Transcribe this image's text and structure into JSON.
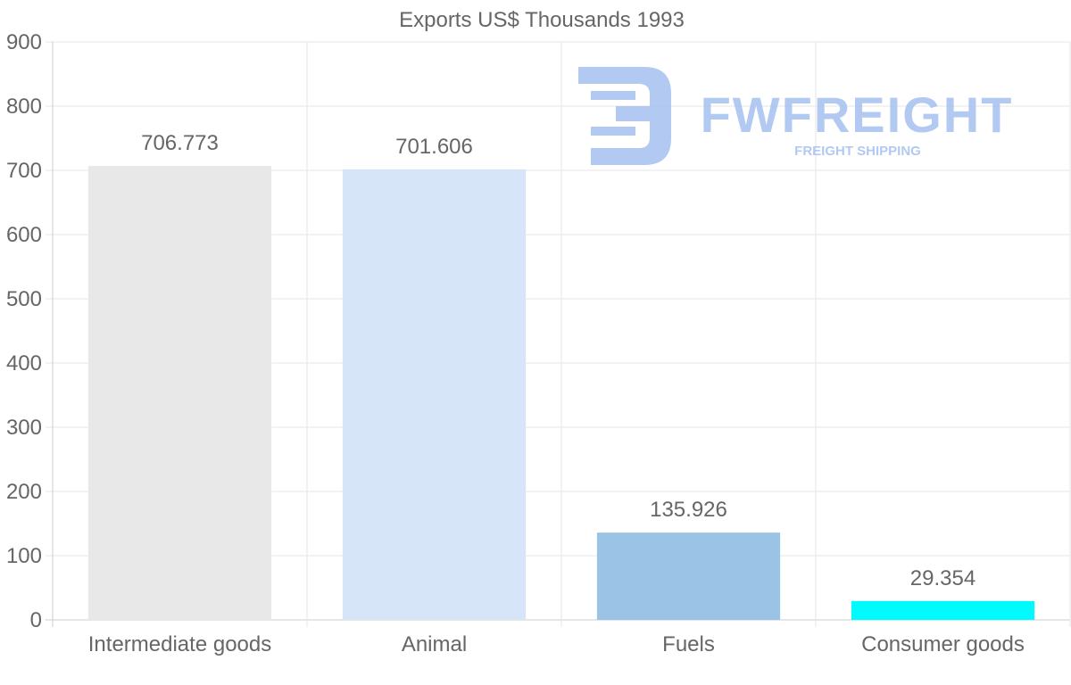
{
  "chart_data": {
    "type": "bar",
    "title": "Exports US$ Thousands 1993",
    "categories": [
      "Intermediate goods",
      "Animal",
      "Fuels",
      "Consumer goods"
    ],
    "values": [
      706.773,
      701.606,
      135.926,
      29.354
    ],
    "value_labels": [
      "706.773",
      "701.606",
      "135.926",
      "29.354"
    ],
    "colors": [
      "#e8e8e8",
      "#d6e6f8",
      "#9bc3e6",
      "#00fbff"
    ],
    "ylim": [
      0,
      900
    ],
    "yticks": [
      0,
      100,
      200,
      300,
      400,
      500,
      600,
      700,
      800,
      900
    ],
    "xlabel": "",
    "ylabel": "",
    "grid": true,
    "legend": "none"
  },
  "watermark": {
    "brand": "FWFREIGHT",
    "tagline": "FREIGHT SHIPPING",
    "color": "#aac4f0"
  },
  "colors": {
    "text": "#666666",
    "grid": "#e6e6e6",
    "axis": "#cccccc"
  }
}
